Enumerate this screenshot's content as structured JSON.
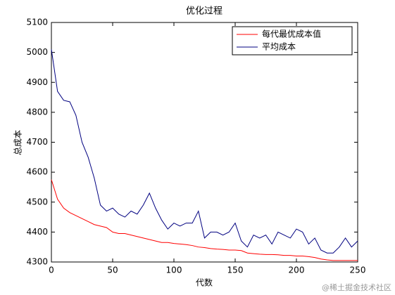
{
  "chart_data": {
    "type": "line",
    "title": "优化过程",
    "x_label": "代数",
    "y_label": "总成本",
    "x": [
      0,
      5,
      10,
      15,
      20,
      25,
      30,
      35,
      40,
      45,
      50,
      55,
      60,
      65,
      70,
      75,
      80,
      85,
      90,
      95,
      100,
      105,
      110,
      115,
      120,
      125,
      130,
      135,
      140,
      145,
      150,
      155,
      160,
      165,
      170,
      175,
      180,
      185,
      190,
      195,
      200,
      205,
      210,
      215,
      220,
      225,
      230,
      235,
      240,
      245,
      250
    ],
    "series": [
      {
        "name": "每代最优成本值",
        "color": "#ff0000",
        "values": [
          4575,
          4510,
          4480,
          4465,
          4455,
          4445,
          4435,
          4425,
          4420,
          4415,
          4400,
          4395,
          4395,
          4390,
          4385,
          4380,
          4375,
          4370,
          4365,
          4365,
          4362,
          4360,
          4358,
          4355,
          4350,
          4348,
          4345,
          4343,
          4342,
          4340,
          4340,
          4338,
          4330,
          4328,
          4326,
          4325,
          4325,
          4324,
          4322,
          4322,
          4320,
          4320,
          4318,
          4315,
          4310,
          4307,
          4305,
          4305,
          4305,
          4305,
          4305
        ]
      },
      {
        "name": "平均成本",
        "color": "#000080",
        "values": [
          5010,
          4870,
          4840,
          4835,
          4790,
          4700,
          4650,
          4580,
          4490,
          4470,
          4480,
          4460,
          4450,
          4470,
          4460,
          4490,
          4530,
          4480,
          4440,
          4410,
          4430,
          4420,
          4430,
          4430,
          4470,
          4380,
          4400,
          4400,
          4390,
          4400,
          4430,
          4370,
          4350,
          4390,
          4380,
          4390,
          4360,
          4400,
          4390,
          4380,
          4410,
          4400,
          4360,
          4380,
          4340,
          4330,
          4330,
          4350,
          4380,
          4350,
          4370
        ]
      }
    ],
    "xlim": [
      0,
      250
    ],
    "xticks": [
      0,
      50,
      100,
      150,
      200,
      250
    ],
    "ylim": [
      4300,
      5100
    ],
    "yticks": [
      4300,
      4400,
      4500,
      4600,
      4700,
      4800,
      4900,
      5000,
      5100
    ],
    "legend": "northeast",
    "watermark": "@稀土掘金技术社区"
  }
}
